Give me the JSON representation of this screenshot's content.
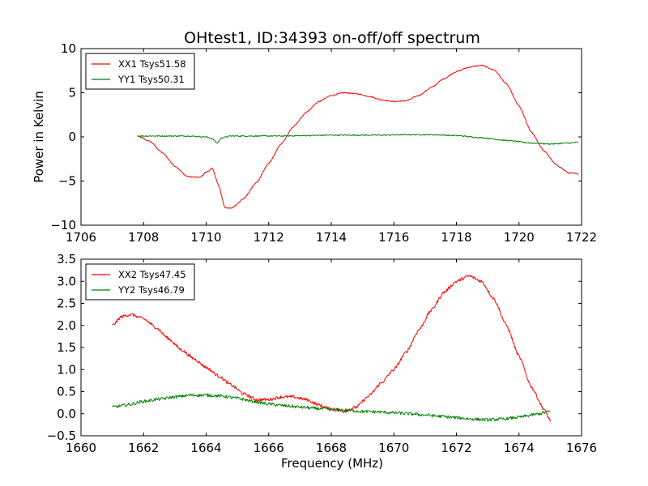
{
  "figure": {
    "title": "OHtest1, ID:34393 on-off/off spectrum"
  },
  "chart_data": [
    {
      "type": "line",
      "title": "OHtest1, ID:34393 on-off/off spectrum",
      "xlabel": "",
      "ylabel": "Power in Kelvin",
      "xlim": [
        1706,
        1722
      ],
      "ylim": [
        -10,
        10
      ],
      "xticks": [
        1706,
        1708,
        1710,
        1712,
        1714,
        1716,
        1718,
        1720,
        1722
      ],
      "yticks": [
        -10,
        -5,
        0,
        5,
        10
      ],
      "grid": false,
      "legend_position": "top-left",
      "series": [
        {
          "name": "XX1 Tsys51.58",
          "color": "#ff0000",
          "x": [
            1707.8,
            1708.2,
            1708.6,
            1709.0,
            1709.4,
            1709.8,
            1710.0,
            1710.2,
            1710.4,
            1710.6,
            1710.8,
            1711.2,
            1711.6,
            1712.0,
            1712.4,
            1712.8,
            1713.2,
            1713.6,
            1714.0,
            1714.4,
            1714.8,
            1715.2,
            1715.6,
            1716.0,
            1716.4,
            1716.8,
            1717.2,
            1717.6,
            1718.0,
            1718.4,
            1718.8,
            1719.2,
            1719.6,
            1720.0,
            1720.4,
            1720.8,
            1721.2,
            1721.6,
            1721.9
          ],
          "y": [
            0.1,
            -0.5,
            -1.8,
            -3.3,
            -4.5,
            -4.6,
            -4.0,
            -3.6,
            -5.5,
            -8.0,
            -8.1,
            -7.0,
            -5.2,
            -3.0,
            -0.8,
            1.2,
            2.8,
            4.0,
            4.7,
            5.0,
            4.9,
            4.6,
            4.2,
            4.0,
            4.1,
            4.7,
            5.6,
            6.6,
            7.4,
            7.9,
            8.1,
            7.6,
            6.0,
            3.5,
            0.5,
            -1.6,
            -3.2,
            -4.1,
            -4.2
          ],
          "noise": 0.06
        },
        {
          "name": "YY1 Tsys50.31",
          "color": "#008000",
          "x": [
            1707.8,
            1708.6,
            1709.4,
            1710.0,
            1710.2,
            1710.35,
            1710.5,
            1710.8,
            1711.6,
            1712.4,
            1713.2,
            1714.0,
            1714.8,
            1715.6,
            1716.4,
            1717.2,
            1718.0,
            1718.8,
            1719.6,
            1720.4,
            1721.0,
            1721.6,
            1721.9
          ],
          "y": [
            0.1,
            0.1,
            0.1,
            0.0,
            -0.2,
            -0.7,
            -0.1,
            0.1,
            0.1,
            0.1,
            0.15,
            0.2,
            0.2,
            0.2,
            0.25,
            0.25,
            0.15,
            -0.1,
            -0.4,
            -0.7,
            -0.8,
            -0.7,
            -0.6
          ],
          "noise": 0.06
        }
      ]
    },
    {
      "type": "line",
      "title": "",
      "xlabel": "Frequency (MHz)",
      "ylabel": "",
      "xlim": [
        1660,
        1676
      ],
      "ylim": [
        -0.5,
        3.5
      ],
      "xticks": [
        1660,
        1662,
        1664,
        1666,
        1668,
        1670,
        1672,
        1674,
        1676
      ],
      "yticks": [
        -0.5,
        0.0,
        0.5,
        1.0,
        1.5,
        2.0,
        2.5,
        3.0,
        3.5
      ],
      "grid": false,
      "legend_position": "top-left",
      "series": [
        {
          "name": "XX2 Tsys47.45",
          "color": "#ff0000",
          "x": [
            1661.0,
            1661.3,
            1661.6,
            1662.0,
            1662.4,
            1662.8,
            1663.2,
            1663.6,
            1664.0,
            1664.4,
            1664.8,
            1665.2,
            1665.6,
            1666.0,
            1666.4,
            1666.8,
            1667.2,
            1667.6,
            1668.0,
            1668.4,
            1668.8,
            1669.2,
            1669.6,
            1670.0,
            1670.4,
            1670.8,
            1671.2,
            1671.6,
            1672.0,
            1672.4,
            1672.8,
            1673.2,
            1673.6,
            1674.0,
            1674.4,
            1674.8,
            1675.0
          ],
          "y": [
            2.0,
            2.2,
            2.25,
            2.15,
            1.95,
            1.7,
            1.45,
            1.25,
            1.05,
            0.85,
            0.65,
            0.45,
            0.32,
            0.32,
            0.38,
            0.38,
            0.32,
            0.2,
            0.1,
            0.05,
            0.15,
            0.4,
            0.7,
            1.0,
            1.4,
            1.9,
            2.35,
            2.75,
            3.0,
            3.12,
            3.0,
            2.6,
            2.0,
            1.3,
            0.6,
            0.1,
            -0.15
          ],
          "noise": 0.035
        },
        {
          "name": "YY2 Tsys46.79",
          "color": "#008000",
          "x": [
            1661.0,
            1661.5,
            1662.0,
            1662.5,
            1663.0,
            1663.5,
            1664.0,
            1664.5,
            1665.0,
            1665.5,
            1666.0,
            1666.5,
            1667.0,
            1667.5,
            1668.0,
            1668.5,
            1669.0,
            1669.5,
            1670.0,
            1670.5,
            1671.0,
            1671.5,
            1672.0,
            1672.5,
            1673.0,
            1673.5,
            1674.0,
            1674.5,
            1675.0
          ],
          "y": [
            0.15,
            0.2,
            0.28,
            0.33,
            0.38,
            0.42,
            0.42,
            0.4,
            0.35,
            0.28,
            0.22,
            0.18,
            0.15,
            0.12,
            0.1,
            0.08,
            0.05,
            0.04,
            0.02,
            0.0,
            -0.03,
            -0.06,
            -0.09,
            -0.12,
            -0.14,
            -0.12,
            -0.08,
            -0.02,
            0.05
          ],
          "noise": 0.035
        }
      ]
    }
  ]
}
